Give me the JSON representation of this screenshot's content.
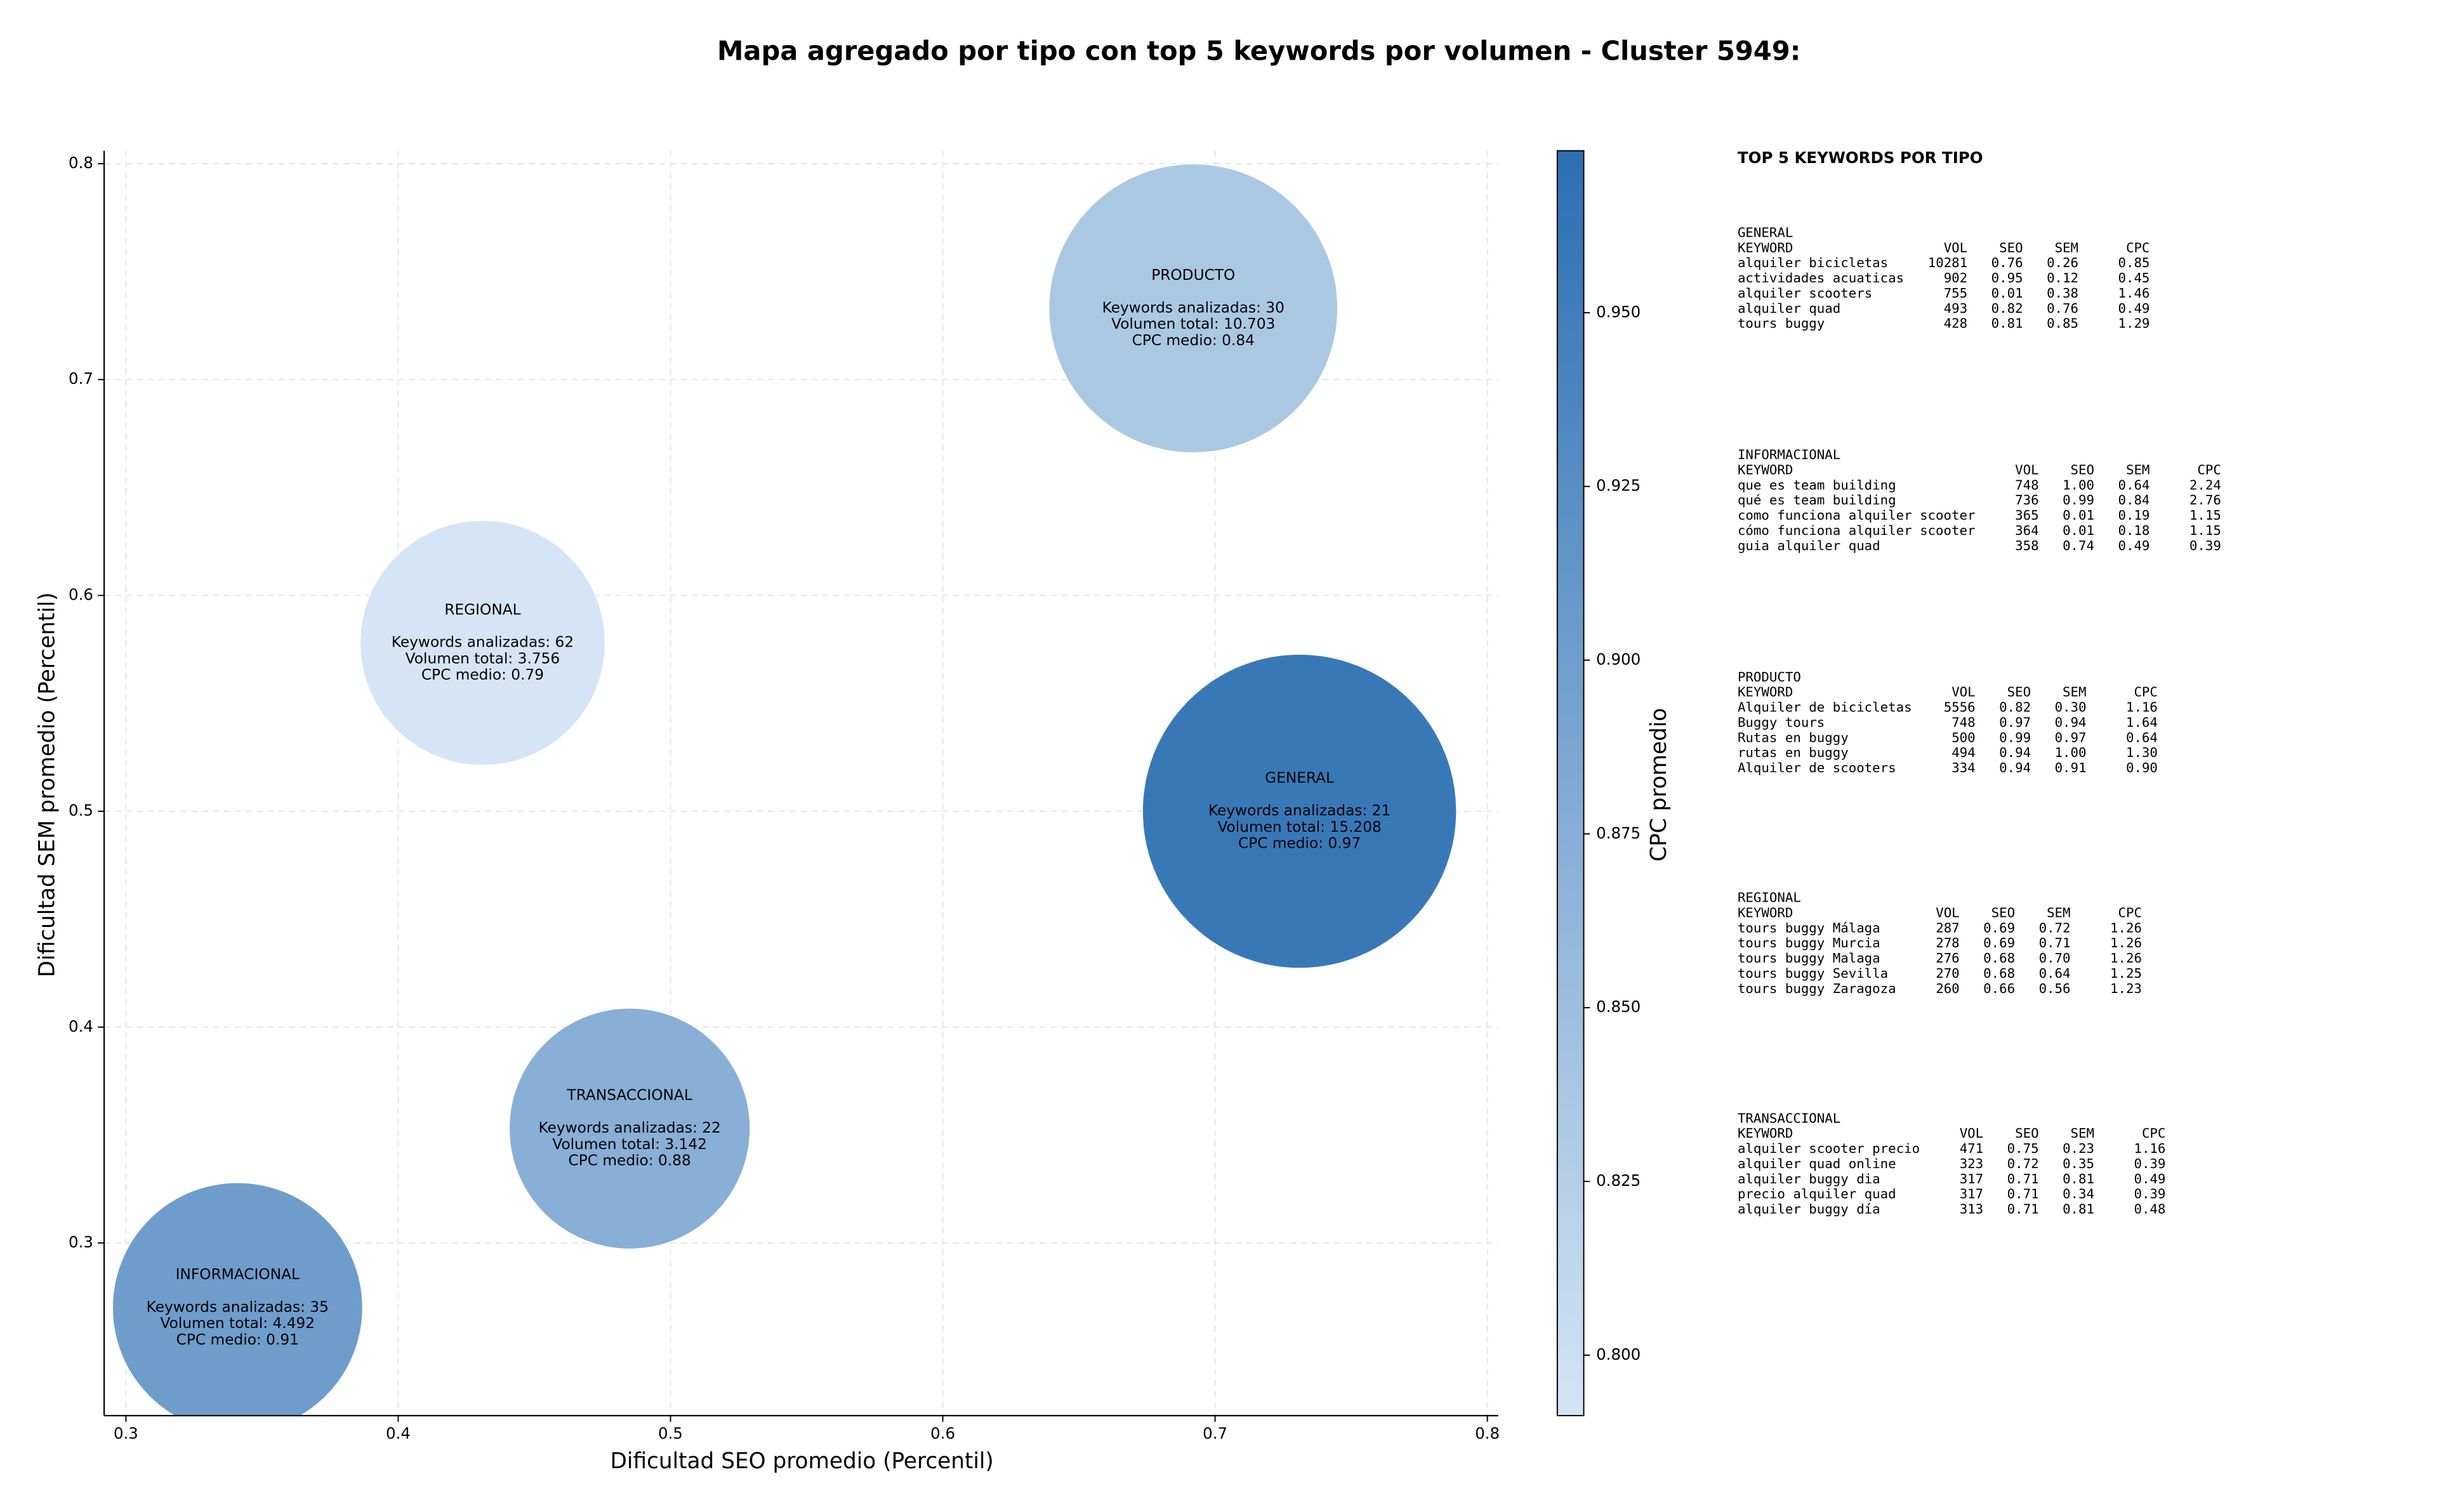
{
  "chart_data": {
    "type": "bubble",
    "title": "Mapa agregado por tipo con top 5 keywords por volumen - Cluster 5949:",
    "x_label": "Dificultad SEO promedio (Percentil)",
    "y_label": "Dificultad SEM promedio (Percentil)",
    "xlim": [
      0.292,
      0.804
    ],
    "ylim": [
      0.22,
      0.806
    ],
    "xticks": [
      0.3,
      0.4,
      0.5,
      0.6,
      0.7,
      0.8
    ],
    "yticks": [
      0.3,
      0.4,
      0.5,
      0.6,
      0.7,
      0.8
    ],
    "grid": true,
    "colorbar": {
      "label": "CPC promedio",
      "lim": [
        0.7913,
        0.9733
      ],
      "colormap": [
        "#d4e4f4",
        "#2b6fb2"
      ],
      "ticks": [
        {
          "value": 0.8,
          "label": "0.800"
        },
        {
          "value": 0.825,
          "label": "0.825"
        },
        {
          "value": 0.85,
          "label": "0.850"
        },
        {
          "value": 0.875,
          "label": "0.875"
        },
        {
          "value": 0.9,
          "label": "0.900"
        },
        {
          "value": 0.925,
          "label": "0.925"
        },
        {
          "value": 0.95,
          "label": "0.950"
        }
      ]
    },
    "points": [
      {
        "name": "PRODUCTO",
        "x": 0.692,
        "y": 0.733,
        "size": 10703,
        "cpc": 0.84,
        "labels": [
          "Keywords analizadas: 30",
          "Volumen total: 10.703",
          "CPC medio: 0.84"
        ]
      },
      {
        "name": "REGIONAL",
        "x": 0.431,
        "y": 0.578,
        "size": 3756,
        "cpc": 0.79,
        "labels": [
          "Keywords analizadas: 62",
          "Volumen total: 3.756",
          "CPC medio: 0.79"
        ]
      },
      {
        "name": "GENERAL",
        "x": 0.731,
        "y": 0.5,
        "size": 15208,
        "cpc": 0.97,
        "labels": [
          "Keywords analizadas: 21",
          "Volumen total: 15.208",
          "CPC medio: 0.97"
        ]
      },
      {
        "name": "TRANSACCIONAL",
        "x": 0.485,
        "y": 0.353,
        "size": 3142,
        "cpc": 0.88,
        "labels": [
          "Keywords analizadas: 22",
          "Volumen total: 3.142",
          "CPC medio: 0.88"
        ]
      },
      {
        "name": "INFORMACIONAL",
        "x": 0.341,
        "y": 0.27,
        "size": 4492,
        "cpc": 0.91,
        "labels": [
          "Keywords analizadas: 35",
          "Volumen total: 4.492",
          "CPC medio: 0.91"
        ]
      }
    ]
  },
  "keywords_panel": {
    "title": "TOP 5 KEYWORDS POR TIPO",
    "groups": [
      {
        "name": "GENERAL",
        "header": [
          "KEYWORD",
          "VOL",
          "SEO",
          "SEM",
          "CPC"
        ],
        "rows": [
          [
            "alquiler bicicletas",
            "10281",
            "0.76",
            "0.26",
            "0.85"
          ],
          [
            "actividades acuaticas",
            "902",
            "0.95",
            "0.12",
            "0.45"
          ],
          [
            "alquiler scooters",
            "755",
            "0.01",
            "0.38",
            "1.46"
          ],
          [
            "alquiler quad",
            "493",
            "0.82",
            "0.76",
            "0.49"
          ],
          [
            "tours buggy",
            "428",
            "0.81",
            "0.85",
            "1.29"
          ]
        ]
      },
      {
        "name": "INFORMACIONAL",
        "header": [
          "KEYWORD",
          "VOL",
          "SEO",
          "SEM",
          "CPC"
        ],
        "rows": [
          [
            "que es team building",
            "748",
            "1.00",
            "0.64",
            "2.24"
          ],
          [
            "qué es team building",
            "736",
            "0.99",
            "0.84",
            "2.76"
          ],
          [
            "como funciona alquiler scooter",
            "365",
            "0.01",
            "0.19",
            "1.15"
          ],
          [
            "cómo funciona alquiler scooter",
            "364",
            "0.01",
            "0.18",
            "1.15"
          ],
          [
            "guia alquiler quad",
            "358",
            "0.74",
            "0.49",
            "0.39"
          ]
        ]
      },
      {
        "name": "PRODUCTO",
        "header": [
          "KEYWORD",
          "VOL",
          "SEO",
          "SEM",
          "CPC"
        ],
        "rows": [
          [
            "Alquiler de bicicletas",
            "5556",
            "0.82",
            "0.30",
            "1.16"
          ],
          [
            "Buggy tours",
            "748",
            "0.97",
            "0.94",
            "1.64"
          ],
          [
            "Rutas en buggy",
            "500",
            "0.99",
            "0.97",
            "0.64"
          ],
          [
            "rutas en buggy",
            "494",
            "0.94",
            "1.00",
            "1.30"
          ],
          [
            "Alquiler de scooters",
            "334",
            "0.94",
            "0.91",
            "0.90"
          ]
        ]
      },
      {
        "name": "REGIONAL",
        "header": [
          "KEYWORD",
          "VOL",
          "SEO",
          "SEM",
          "CPC"
        ],
        "rows": [
          [
            "tours buggy Málaga",
            "287",
            "0.69",
            "0.72",
            "1.26"
          ],
          [
            "tours buggy Murcia",
            "278",
            "0.69",
            "0.71",
            "1.26"
          ],
          [
            "tours buggy Malaga",
            "276",
            "0.68",
            "0.70",
            "1.26"
          ],
          [
            "tours buggy Sevilla",
            "270",
            "0.68",
            "0.64",
            "1.25"
          ],
          [
            "tours buggy Zaragoza",
            "260",
            "0.66",
            "0.56",
            "1.23"
          ]
        ]
      },
      {
        "name": "TRANSACCIONAL",
        "header": [
          "KEYWORD",
          "VOL",
          "SEO",
          "SEM",
          "CPC"
        ],
        "rows": [
          [
            "alquiler scooter precio",
            "471",
            "0.75",
            "0.23",
            "1.16"
          ],
          [
            "alquiler quad online",
            "323",
            "0.72",
            "0.35",
            "0.39"
          ],
          [
            "alquiler buggy dia",
            "317",
            "0.71",
            "0.81",
            "0.49"
          ],
          [
            "precio alquiler quad",
            "317",
            "0.71",
            "0.34",
            "0.39"
          ],
          [
            "alquiler buggy día",
            "313",
            "0.71",
            "0.81",
            "0.48"
          ]
        ]
      }
    ]
  }
}
